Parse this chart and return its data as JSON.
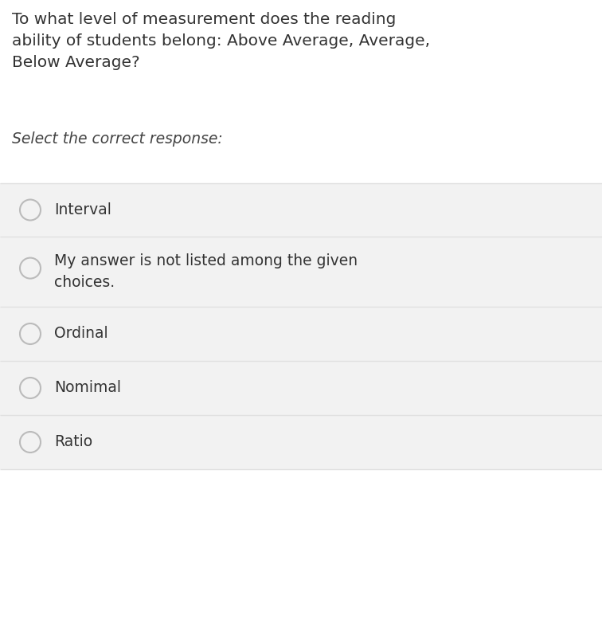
{
  "title_text": "To what level of measurement does the reading\nability of students belong: Above Average, Average,\nBelow Average?",
  "subtitle_text": "Select the correct response:",
  "choices": [
    "Interval",
    "My answer is not listed among the given\nchoices.",
    "Ordinal",
    "Nomimal",
    "Ratio"
  ],
  "bg_color": "#ffffff",
  "choice_bg_color": "#f2f2f2",
  "separator_color": "#e0e0e0",
  "title_color": "#333333",
  "subtitle_color": "#444444",
  "choice_text_color": "#333333",
  "radio_edge_color": "#bbbbbb",
  "radio_fill_color": "#f2f2f2",
  "title_fontsize": 14.5,
  "subtitle_fontsize": 13.5,
  "choice_fontsize": 13.5,
  "fig_width": 7.56,
  "fig_height": 7.82,
  "dpi": 100
}
